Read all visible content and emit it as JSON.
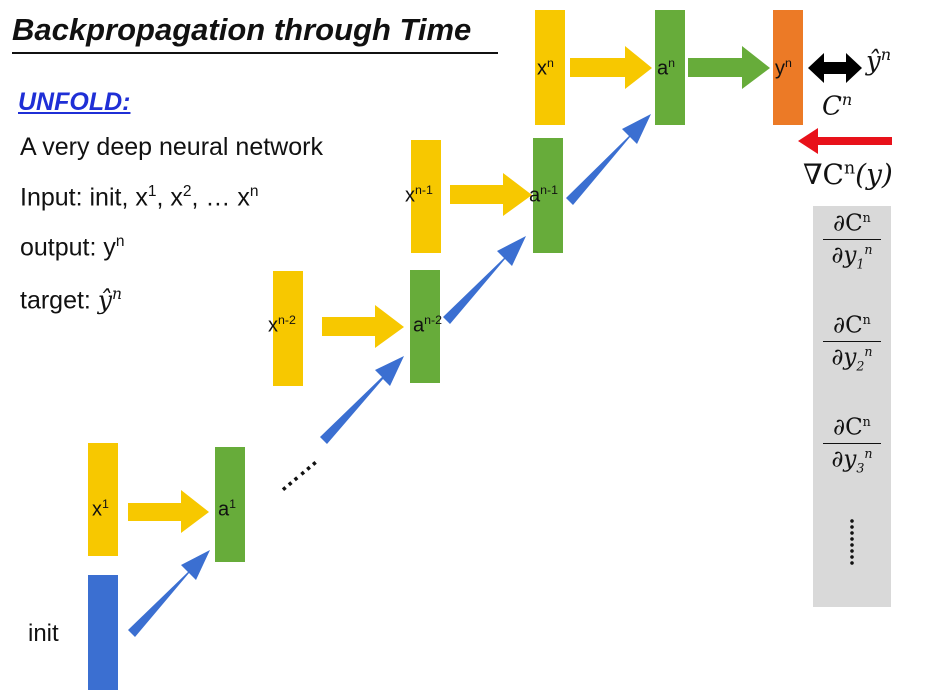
{
  "title": "Backpropagation through Time",
  "unfold_label": "UNFOLD:",
  "description_lines": {
    "line1": "A very deep neural network",
    "line2_prefix": "Input: init, x",
    "line2_mid1": ", x",
    "line2_mid2": ", … x",
    "sup1": "1",
    "sup2": "2",
    "supn": "n",
    "line3_prefix": "output: y",
    "line4_prefix": "target: ",
    "target_symbol": "ŷ",
    "target_sup": "n"
  },
  "nodes": {
    "init": "init",
    "x1": "x",
    "x1_sup": "1",
    "a1": "a",
    "a1_sup": "1",
    "xn2": "x",
    "xn2_sup": "n-2",
    "an2": "a",
    "an2_sup": "n-2",
    "xn1": "x",
    "xn1_sup": "n-1",
    "an1": "a",
    "an1_sup": "n-1",
    "xn": "x",
    "xn_sup": "n",
    "an": "a",
    "an_sup": "n",
    "yn": "y",
    "yn_sup": "n"
  },
  "ellipsis": "……",
  "cost": {
    "symbol": "C",
    "sup": "n"
  },
  "target_top": {
    "symbol": "ŷ",
    "sup": "n"
  },
  "gradient": {
    "text": "∇C",
    "sup": "n",
    "arg": "(y)"
  },
  "partials": [
    {
      "num": "∂C",
      "num_sup": "n",
      "den": "∂y",
      "den_sup": "n",
      "den_sub": "1"
    },
    {
      "num": "∂C",
      "num_sup": "n",
      "den": "∂y",
      "den_sup": "n",
      "den_sub": "2"
    },
    {
      "num": "∂C",
      "num_sup": "n",
      "den": "∂y",
      "den_sup": "n",
      "den_sub": "3"
    }
  ],
  "colors": {
    "input": "#f7c800",
    "hidden": "#67ac3a",
    "init": "#3b6fd1",
    "output": "#ec7a26",
    "gradient_arrow": "#e8111a",
    "title_accent": "#1f2fd6"
  }
}
